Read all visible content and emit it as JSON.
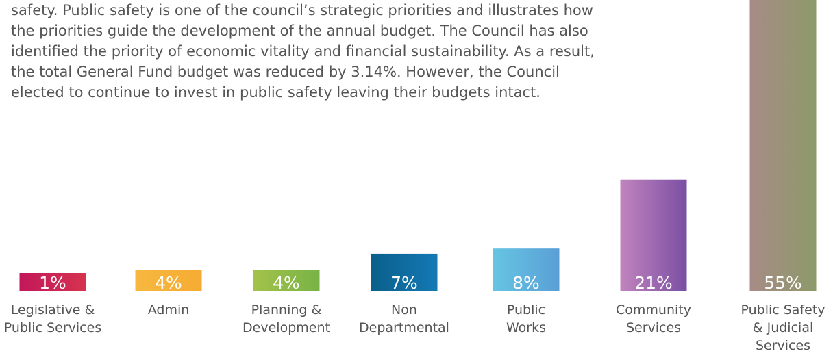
{
  "text": {
    "lines": [
      "safety.  Public safety is one of the council’s strategic priorities and illustrates how",
      "the priorities guide the development of the annual budget. The Council has also",
      "identified the priority of economic vitality and financial sustainability.  As a result,",
      "the total General Fund budget was reduced by 3.14%.  However, the Council",
      "elected to continue to invest in public safety leaving their budgets intact."
    ]
  },
  "chart_data": {
    "type": "bar",
    "categories": [
      "Legislative & Public Services",
      "Admin",
      "Planning & Development",
      "Non Departmental",
      "Public Works",
      "Community Services",
      "Public Safety & Judicial Services"
    ],
    "category_lines": [
      [
        "Legislative &",
        "Public Services"
      ],
      [
        "Admin"
      ],
      [
        "Planning &",
        "Development"
      ],
      [
        "Non",
        "Departmental"
      ],
      [
        "Public",
        "Works"
      ],
      [
        "Community",
        "Services"
      ],
      [
        "Public Safety",
        "& Judicial",
        "Services"
      ]
    ],
    "values": [
      1,
      4,
      4,
      7,
      8,
      21,
      55
    ],
    "data_labels": [
      "1%",
      "4%",
      "4%",
      "7%",
      "8%",
      "21%",
      "55%"
    ],
    "colors": [
      [
        "#c2185b",
        "#d6334e"
      ],
      [
        "#f7b83f",
        "#f5ab33"
      ],
      [
        "#a3c24a",
        "#78b346"
      ],
      [
        "#0a5f8a",
        "#1479b5"
      ],
      [
        "#66c5e3",
        "#5a9fd6"
      ],
      [
        "#c184be",
        "#7a4fa3"
      ],
      [
        "#a88b86",
        "#8c9a6a"
      ]
    ],
    "unit": "%",
    "legend": "none",
    "grid": false
  }
}
